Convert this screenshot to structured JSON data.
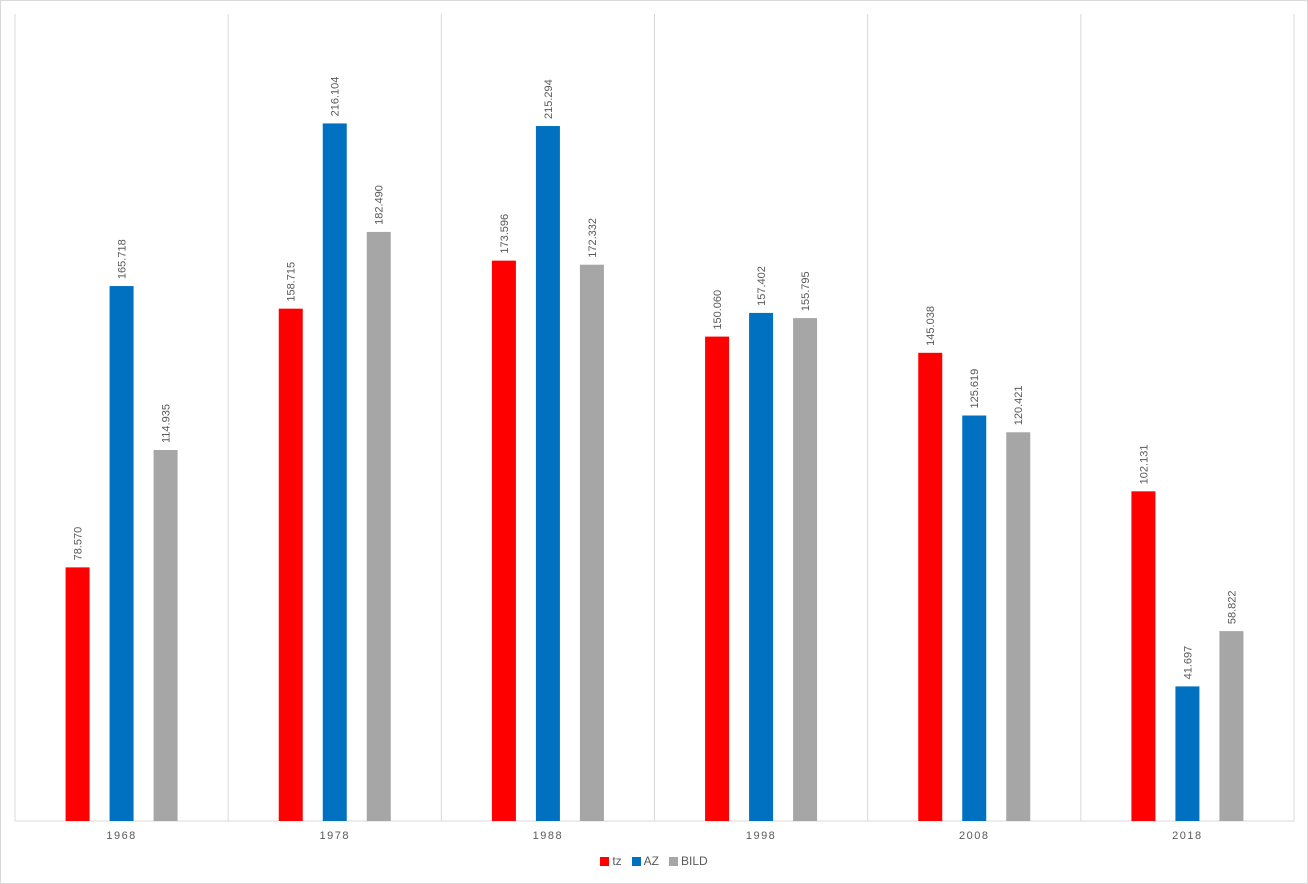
{
  "chart_data": {
    "type": "bar",
    "title": "",
    "xlabel": "",
    "ylabel": "",
    "categories": [
      "1968",
      "1978",
      "1988",
      "1998",
      "2008",
      "2018"
    ],
    "series": [
      {
        "name": "tz",
        "color": "#ff0000",
        "values": [
          78.57,
          158.715,
          173.596,
          150.06,
          145.038,
          102.131
        ],
        "labels": [
          "78.570",
          "158.715",
          "173.596",
          "150.060",
          "145.038",
          "102.131"
        ]
      },
      {
        "name": "AZ",
        "color": "#0070c0",
        "values": [
          165.718,
          216.104,
          215.294,
          157.402,
          125.619,
          41.697
        ],
        "labels": [
          "165.718",
          "216.104",
          "215.294",
          "157.402",
          "125.619",
          "41.697"
        ]
      },
      {
        "name": "BILD",
        "color": "#a6a6a6",
        "values": [
          114.935,
          182.49,
          172.332,
          155.795,
          120.421,
          58.822
        ],
        "labels": [
          "114.935",
          "182.490",
          "172.332",
          "155.795",
          "120.421",
          "58.822"
        ]
      }
    ],
    "ylim": [
      0,
      250
    ],
    "grid": "vertical separators between categories",
    "legend_position": "bottom",
    "data_labels": "rotated, above bars"
  }
}
